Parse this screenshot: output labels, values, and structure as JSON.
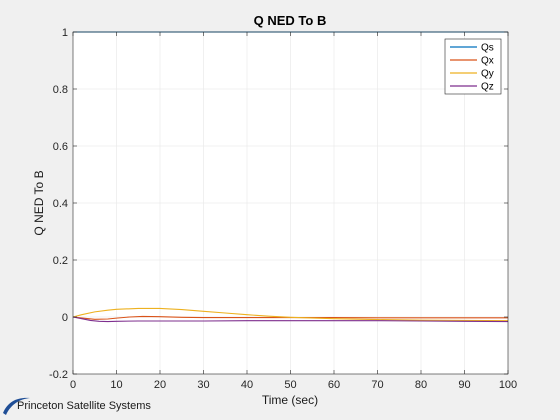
{
  "chart_data": {
    "type": "line",
    "title": "Q NED To B",
    "xlabel": "Time (sec)",
    "ylabel": "Q NED To B",
    "xlim": [
      0,
      100
    ],
    "ylim": [
      -0.2,
      1
    ],
    "xticks": [
      0,
      10,
      20,
      30,
      40,
      50,
      60,
      70,
      80,
      90,
      100
    ],
    "yticks": [
      -0.2,
      0,
      0.2,
      0.4,
      0.6,
      0.8,
      1
    ],
    "grid": true,
    "legend_position": "top-right",
    "series": [
      {
        "name": "Qs",
        "color": "#0072bd",
        "x": [
          0,
          10,
          20,
          30,
          40,
          50,
          60,
          70,
          80,
          90,
          100
        ],
        "y": [
          1,
          1,
          1,
          1,
          1,
          1,
          1,
          1,
          1,
          1,
          1
        ]
      },
      {
        "name": "Qx",
        "color": "#d95319",
        "x": [
          0,
          3,
          5,
          8,
          10,
          13,
          16,
          20,
          25,
          30,
          40,
          50,
          60,
          70,
          80,
          90,
          100
        ],
        "y": [
          0,
          -0.005,
          -0.008,
          -0.007,
          -0.004,
          0.0,
          0.002,
          0.001,
          -0.001,
          -0.002,
          -0.002,
          -0.002,
          -0.002,
          -0.003,
          -0.003,
          -0.003,
          -0.003
        ]
      },
      {
        "name": "Qy",
        "color": "#edb120",
        "x": [
          0,
          2,
          5,
          8,
          10,
          15,
          20,
          25,
          30,
          35,
          40,
          45,
          50,
          60,
          70,
          80,
          90,
          100
        ],
        "y": [
          0,
          0.008,
          0.018,
          0.024,
          0.027,
          0.03,
          0.03,
          0.026,
          0.02,
          0.014,
          0.008,
          0.003,
          -0.001,
          -0.006,
          -0.009,
          -0.011,
          -0.012,
          -0.013
        ]
      },
      {
        "name": "Qz",
        "color": "#7e2f8e",
        "x": [
          0,
          2,
          4,
          6,
          8,
          10,
          15,
          20,
          30,
          40,
          50,
          60,
          70,
          80,
          90,
          100
        ],
        "y": [
          0,
          -0.006,
          -0.012,
          -0.015,
          -0.016,
          -0.015,
          -0.014,
          -0.014,
          -0.014,
          -0.013,
          -0.013,
          -0.013,
          -0.013,
          -0.014,
          -0.015,
          -0.016
        ]
      }
    ]
  },
  "branding": {
    "text": "Princeton Satellite Systems",
    "logo_icon": "swoosh-logo-icon",
    "logo_color": "#1f4e96"
  }
}
